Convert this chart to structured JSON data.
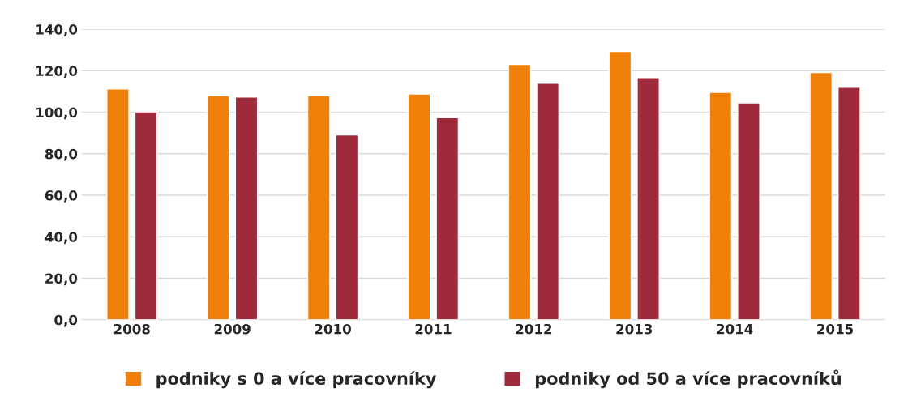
{
  "chart_data": {
    "type": "bar",
    "categories": [
      "2008",
      "2009",
      "2010",
      "2011",
      "2012",
      "2013",
      "2014",
      "2015"
    ],
    "series": [
      {
        "name": "podniky s 0 a více pracovníky",
        "color": "#f0800a",
        "values": [
          111.2,
          108.0,
          108.0,
          108.8,
          123.0,
          129.3,
          109.6,
          119.1
        ]
      },
      {
        "name": "podniky od 50 a více pracovníků",
        "color": "#9e2a3b",
        "values": [
          100.2,
          107.3,
          89.1,
          97.4,
          114.0,
          116.7,
          104.5,
          112.0
        ]
      }
    ],
    "ylim": [
      0,
      140
    ],
    "yticks": [
      {
        "value": 0,
        "label": "0,0"
      },
      {
        "value": 20,
        "label": "20,0"
      },
      {
        "value": 40,
        "label": "40,0"
      },
      {
        "value": 60,
        "label": "60,0"
      },
      {
        "value": 80,
        "label": "80,0"
      },
      {
        "value": 100,
        "label": "100,0"
      },
      {
        "value": 120,
        "label": "120,0"
      },
      {
        "value": 140,
        "label": "140,0"
      }
    ],
    "grid": "y",
    "legend": "bottom"
  }
}
